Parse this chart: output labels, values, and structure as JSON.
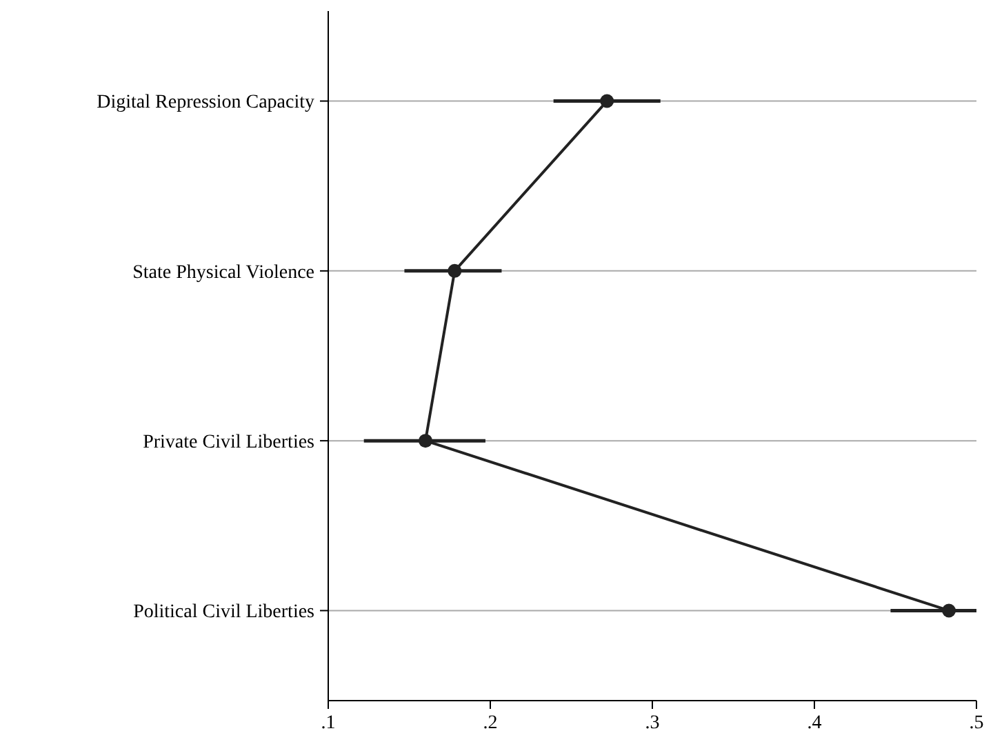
{
  "chart_data": {
    "type": "line",
    "orientation": "horizontal",
    "categories": [
      "Digital Repression Capacity",
      "State Physical Violence",
      "Private Civil Liberties",
      "Political Civil Liberties"
    ],
    "values": [
      0.272,
      0.178,
      0.16,
      0.483
    ],
    "color": "#222222",
    "errors": [
      [
        0.239,
        0.305
      ],
      [
        0.147,
        0.207
      ],
      [
        0.122,
        0.197
      ],
      [
        0.447,
        0.5
      ]
    ],
    "xlim": [
      0.1,
      0.5
    ],
    "xticks": [
      {
        "value": 0.1,
        "label": ".1"
      },
      {
        "value": 0.2,
        "label": ".2"
      },
      {
        "value": 0.3,
        "label": ".3"
      },
      {
        "value": 0.4,
        "label": ".4"
      },
      {
        "value": 0.5,
        "label": ".5"
      }
    ],
    "grid": "y",
    "marker": "circle",
    "line_style": "solid"
  }
}
